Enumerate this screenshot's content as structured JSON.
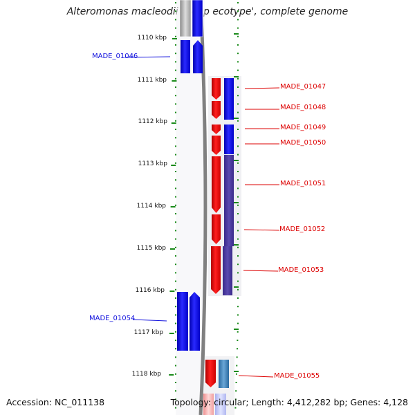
{
  "title": "Alteromonas macleodii 'Deep ecotype', complete genome",
  "accession": "Accession: NC_011138",
  "topology": "Topology: circular; Length: 4,412,282 bp; Genes: 4,128",
  "scale_labels": [
    "1110 kbp",
    "1111 kbp",
    "1112 kbp",
    "1113 kbp",
    "1114 kbp",
    "1115 kbp",
    "1116 kbp",
    "1117 kbp",
    "1118 kbp"
  ],
  "genes_left": [
    {
      "id": "MADE_01046"
    },
    {
      "id": "MADE_01054"
    }
  ],
  "genes_right": [
    {
      "id": "MADE_01047"
    },
    {
      "id": "MADE_01048"
    },
    {
      "id": "MADE_01049"
    },
    {
      "id": "MADE_01050"
    },
    {
      "id": "MADE_01051"
    },
    {
      "id": "MADE_01052"
    },
    {
      "id": "MADE_01053"
    },
    {
      "id": "MADE_01055"
    }
  ],
  "colors": {
    "forward": "#ee0000",
    "reverse": "#1a1aee",
    "backbone": "#888888",
    "tick": "#1a8a1a",
    "label_blue": "#1010dd",
    "label_red": "#dd0000"
  }
}
